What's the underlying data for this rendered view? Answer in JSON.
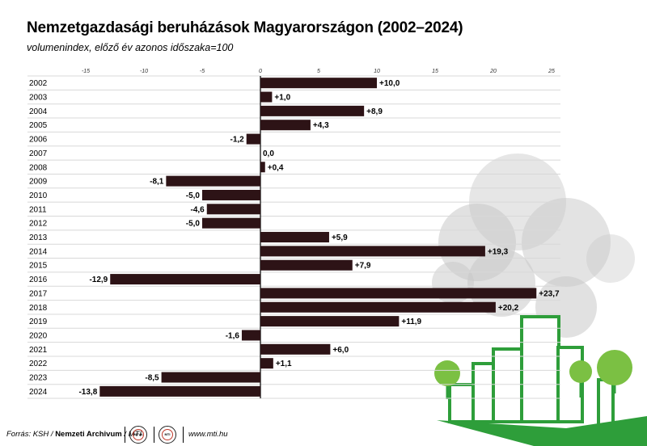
{
  "title": "Nemzetgazdasági beruházások Magyarországon (2002–2024)",
  "subtitle": "volumenindex, előző év azonos időszaka=100",
  "footer": {
    "source_prefix": "Forrás: KSH / ",
    "source_bold": "Nemzeti Archivum",
    "source_suffix": " / MTI",
    "logo1": "MTVA",
    "logo2": "MTI",
    "url": "www.mti.hu"
  },
  "colors": {
    "bar": "#2d1316",
    "grid": "#d8d8d8",
    "zero_axis": "#000000",
    "building_green": "#2e9e3a",
    "tree_green": "#7bc043",
    "smoke": "#c8c8c8"
  },
  "decoration": {
    "illustration": "green-city-buildings-and-trees"
  },
  "chart_data": {
    "type": "bar",
    "orientation": "horizontal",
    "categories": [
      "2002",
      "2003",
      "2004",
      "2005",
      "2006",
      "2007",
      "2008",
      "2009",
      "2010",
      "2011",
      "2012",
      "2013",
      "2014",
      "2015",
      "2016",
      "2017",
      "2018",
      "2019",
      "2020",
      "2021",
      "2022",
      "2023",
      "2024"
    ],
    "values": [
      10.0,
      1.0,
      8.9,
      4.3,
      -1.2,
      0.0,
      0.4,
      -8.1,
      -5.0,
      -4.6,
      -5.0,
      5.9,
      19.3,
      7.9,
      -12.9,
      23.7,
      20.2,
      11.9,
      -1.6,
      6.0,
      1.1,
      -8.5,
      -13.8
    ],
    "labels": [
      "+10,0",
      "+1,0",
      "+8,9",
      "+4,3",
      "-1,2",
      "0,0",
      "+0,4",
      "-8,1",
      "-5,0",
      "-4,6",
      "-5,0",
      "+5,9",
      "+19,3",
      "+7,9",
      "-12,9",
      "+23,7",
      "+20,2",
      "+11,9",
      "-1,6",
      "+6,0",
      "+1,1",
      "-8,5",
      "-13,8"
    ],
    "xticks": [
      -15,
      -10,
      -5,
      0,
      5,
      10,
      15,
      20,
      25
    ],
    "xtick_labels": [
      "-15",
      "-10",
      "-5",
      "0",
      "5",
      "10",
      "15",
      "20",
      "25"
    ],
    "xlim": [
      -15,
      25
    ],
    "grid": "horizontal-lines",
    "axis_position": "top"
  }
}
